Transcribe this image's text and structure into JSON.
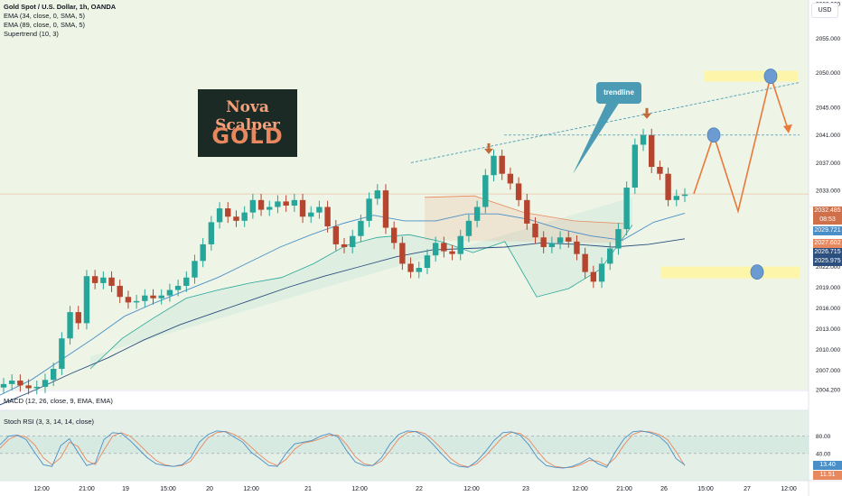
{
  "header": {
    "title": "Gold Spot / U.S. Dollar, 1h, OANDA",
    "indicators": [
      "EMA (34, close, 0, SMA, 5)",
      "EMA (89, close, 0, SMA, 5)",
      "Supertrend (10, 3)"
    ],
    "currency": "USD"
  },
  "logo": {
    "line1": "Nova Scalper",
    "line2": "GOLD"
  },
  "annotation": {
    "trendline_label": "trendline"
  },
  "panes": {
    "macd_label": "MACD (12, 26, close, 9, EMA, EMA)",
    "stoch_label": "Stoch RSI (3, 3, 14, 14, close)"
  },
  "price_badges": {
    "current": "2032.485",
    "countdown": "08:53",
    "ema34": "2029.721",
    "supertrend": "2027.602",
    "ema89_a": "2026.715",
    "ema89_b": "2025.975",
    "stoch_k": "13.40",
    "stoch_d": "11.51"
  },
  "colors": {
    "up": "#26a69a",
    "down": "#b5452f",
    "ema34": "#4a8fc7",
    "ema89": "#2b4f7e",
    "supertrend": "#e8885f",
    "forecast": "#e87a3b",
    "zone": "#fff59d",
    "stoch_k": "#4a8fc7",
    "stoch_d": "#e8885f"
  },
  "chart_data": {
    "type": "candlestick",
    "title": "Gold Spot / U.S. Dollar, 1h, OANDA",
    "y_ticks": [
      2004.2,
      2007,
      2010,
      2013,
      2016,
      2019,
      2022,
      2025,
      2029,
      2033,
      2037,
      2041,
      2045,
      2050,
      2055,
      2060
    ],
    "x_ticks": [
      "12:00",
      "21:00",
      "19",
      "15:00",
      "20",
      "12:00",
      "21",
      "12:00",
      "22",
      "12:00",
      "23",
      "12:00",
      "21:00",
      "26",
      "15:00",
      "27",
      "12:00"
    ],
    "price_series": [
      2005,
      2005.5,
      2004.8,
      2004.4,
      2004.6,
      2005.6,
      2007.2,
      2011.6,
      2015.4,
      2013.8,
      2020.6,
      2019.6,
      2020.4,
      2019.2,
      2017.6,
      2016.8,
      2017,
      2017.8,
      2017.4,
      2017.8,
      2018.6,
      2019.2,
      2020.4,
      2022.8,
      2025.2,
      2028.4,
      2030.4,
      2029.2,
      2028.6,
      2029.8,
      2031.6,
      2030.2,
      2030.6,
      2031.4,
      2030.8,
      2031.6,
      2029.2,
      2029.8,
      2030.6,
      2027.8,
      2025.2,
      2024.8,
      2026.4,
      2028.6,
      2031.8,
      2033,
      2027.6,
      2025.4,
      2022.4,
      2021.2,
      2021.8,
      2023.6,
      2025.4,
      2024.2,
      2023.8,
      2026.4,
      2028.6,
      2030.6,
      2035.2,
      2038,
      2035.4,
      2034,
      2031.6,
      2028.2,
      2026.2,
      2024.8,
      2025.4,
      2026.2,
      2025.6,
      2023.8,
      2021.2,
      2019.8,
      2022.4,
      2024.6,
      2027.4,
      2033.4,
      2039.6,
      2041,
      2036.4,
      2035.4,
      2031.6,
      2032.2,
      2032.4
    ],
    "ema34": [
      2003.4,
      2005.6,
      2008.6,
      2011.6,
      2014.8,
      2016.8,
      2018.6,
      2020.4,
      2022.6,
      2024.8,
      2026.6,
      2028.2,
      2029.4,
      2028.6,
      2028.6,
      2029.6,
      2029.6,
      2028.8,
      2027.4,
      2026.4,
      2025.8,
      2028.4,
      2029.7
    ],
    "ema89": [
      2002,
      2004.2,
      2006.6,
      2008.8,
      2011.4,
      2013.6,
      2015.4,
      2017.2,
      2019,
      2020.6,
      2022,
      2023.4,
      2024.4,
      2024.6,
      2024.8,
      2025.4,
      2025.2,
      2024.8,
      2025.2,
      2026
    ],
    "supertrend_support": [
      2007.2,
      2011.6,
      2014.6,
      2017.4,
      2018.6,
      2019.6,
      2020.4,
      2022.4,
      2025,
      2026.2,
      2026.6,
      2025.6,
      2024,
      2025.6,
      2017.6,
      2018.8,
      2021.6,
      2028
    ],
    "supertrend_resistance": [
      2032,
      2032.2,
      2029.8,
      2028.6,
      2028.2
    ],
    "trendline": {
      "from": 2037,
      "to": 2048.6
    },
    "resistance_level": 2041,
    "forecast_path": [
      2032.5,
      2041,
      2030,
      2049.5,
      2041.5
    ],
    "zones": [
      {
        "level": 2049.5
      },
      {
        "level": 2021.2
      }
    ],
    "signals": [
      {
        "type": "down",
        "price": 2038.5
      },
      {
        "type": "down",
        "price": 2043.6
      }
    ],
    "stoch_rsi": {
      "levels": [
        80,
        40
      ],
      "k": [
        60,
        80,
        82,
        72,
        42,
        14,
        10,
        58,
        74,
        42,
        12,
        18,
        72,
        88,
        86,
        70,
        50,
        30,
        16,
        12,
        10,
        14,
        30,
        66,
        84,
        92,
        90,
        78,
        66,
        42,
        28,
        12,
        10,
        40,
        62,
        66,
        70,
        80,
        86,
        78,
        46,
        20,
        12,
        12,
        30,
        62,
        84,
        92,
        90,
        80,
        60,
        38,
        18,
        10,
        8,
        22,
        44,
        70,
        88,
        90,
        82,
        60,
        30,
        12,
        8,
        6,
        10,
        18,
        30,
        16,
        8,
        44,
        74,
        90,
        92,
        88,
        80,
        62,
        28,
        13.4
      ],
      "d": [
        52,
        72,
        82,
        78,
        60,
        30,
        14,
        30,
        66,
        56,
        24,
        14,
        48,
        80,
        88,
        80,
        62,
        42,
        24,
        14,
        10,
        12,
        22,
        50,
        76,
        88,
        91,
        84,
        72,
        54,
        36,
        20,
        12,
        26,
        50,
        64,
        68,
        74,
        82,
        82,
        60,
        32,
        16,
        12,
        22,
        46,
        74,
        88,
        91,
        86,
        70,
        50,
        28,
        14,
        9,
        16,
        34,
        56,
        78,
        89,
        86,
        72,
        46,
        22,
        10,
        7,
        8,
        14,
        24,
        22,
        12,
        30,
        60,
        84,
        91,
        90,
        84,
        72,
        44,
        11.51
      ]
    }
  }
}
